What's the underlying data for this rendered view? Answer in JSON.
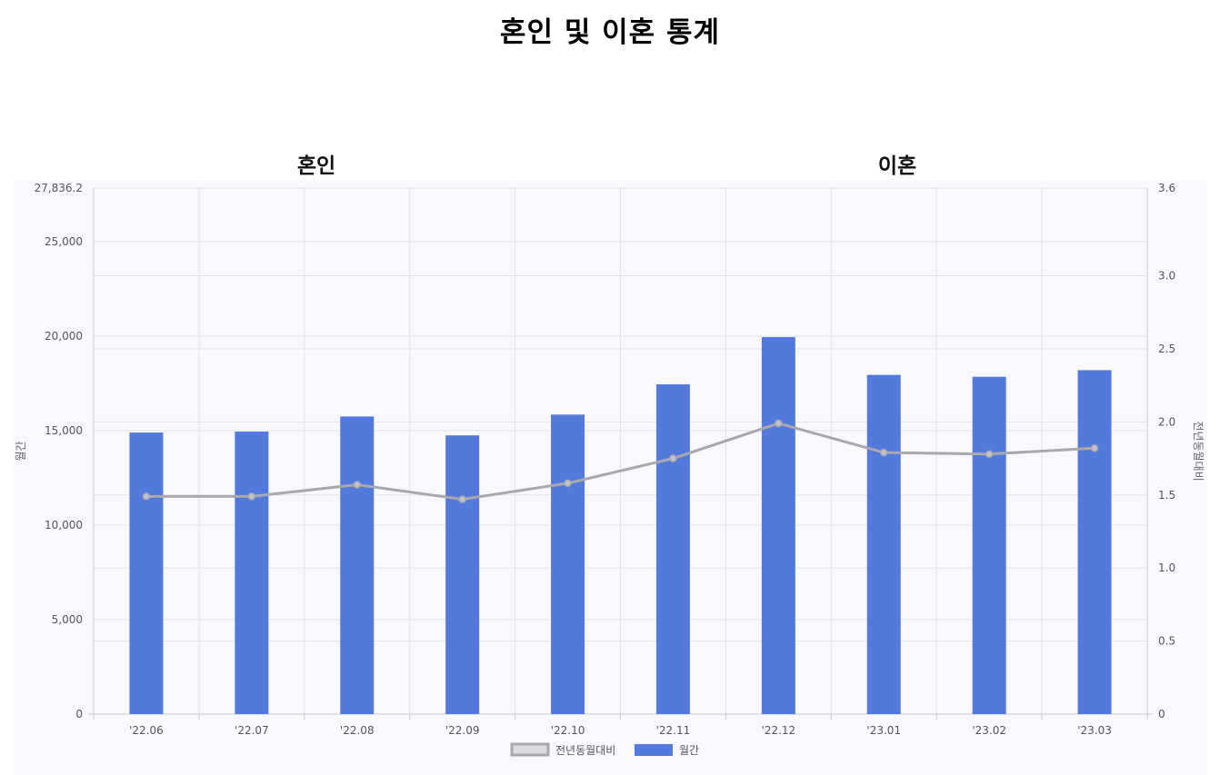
{
  "page": {
    "title": "혼인 및 이혼 통계"
  },
  "tabs": [
    {
      "label": "혼인"
    },
    {
      "label": "이혼"
    }
  ],
  "chart_data": {
    "type": "bar",
    "categories": [
      "'22.06",
      "'22.07",
      "'22.08",
      "'22.09",
      "'22.10",
      "'22.11",
      "'22.12",
      "'23.01",
      "'23.02",
      "'23.03"
    ],
    "series": [
      {
        "name": "월간",
        "type": "bar",
        "axis": "left",
        "color": "#5479dc",
        "values": [
          14900,
          14950,
          15750,
          14750,
          15850,
          17450,
          19950,
          17950,
          17850,
          18200
        ]
      },
      {
        "name": "전년동월대비",
        "type": "line",
        "axis": "right",
        "color": "#a8a8b0",
        "values": [
          1.49,
          1.49,
          1.57,
          1.47,
          1.58,
          1.75,
          1.99,
          1.79,
          1.78,
          1.82
        ]
      }
    ],
    "y_left": {
      "label": "월간",
      "range": [
        0,
        27836.2
      ],
      "ticks": [
        "0",
        "5,000",
        "10,000",
        "15,000",
        "20,000",
        "25,000",
        "27,836.2"
      ],
      "tick_values": [
        0,
        5000,
        10000,
        15000,
        20000,
        25000,
        27836.2
      ]
    },
    "y_right": {
      "label": "전년동월대비",
      "range": [
        0,
        3.6
      ],
      "ticks": [
        "0",
        "0.5",
        "1.0",
        "1.5",
        "2.0",
        "2.5",
        "3.0",
        "3.6"
      ],
      "tick_values": [
        0,
        0.5,
        1.0,
        1.5,
        2.0,
        2.5,
        3.0,
        3.6
      ]
    },
    "grid": true,
    "legend": {
      "position": "bottom",
      "entries": [
        "전년동월대비",
        "월간"
      ]
    }
  }
}
